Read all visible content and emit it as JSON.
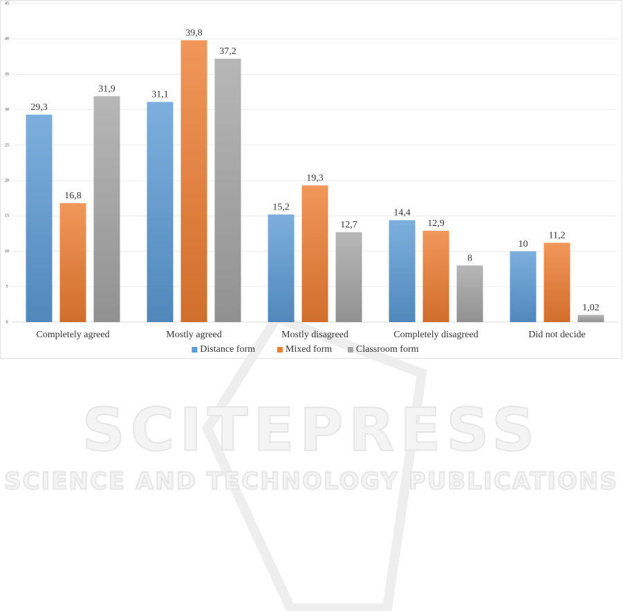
{
  "chart_data": {
    "type": "bar",
    "categories": [
      "Completely agreed",
      "Mostly agreed",
      "Mostly disagreed",
      "Completely disagreed",
      "Did not decide"
    ],
    "series": [
      {
        "name": "Distance form",
        "color": "#5b9bd5",
        "values": [
          29.3,
          31.1,
          15.2,
          14.4,
          10
        ],
        "value_labels": [
          "29,3",
          "31,1",
          "15,2",
          "14,4",
          "10"
        ]
      },
      {
        "name": "Mixed form",
        "color": "#ed7d31",
        "values": [
          16.8,
          39.8,
          19.3,
          12.9,
          11.2
        ],
        "value_labels": [
          "16,8",
          "39,8",
          "19,3",
          "12,9",
          "11,2"
        ]
      },
      {
        "name": "Classroom form",
        "color": "#a5a5a5",
        "values": [
          31.9,
          37.2,
          12.7,
          8,
          1.02
        ],
        "value_labels": [
          "31,9",
          "37,2",
          "12,7",
          "8",
          "1,02"
        ]
      }
    ],
    "ylim": [
      0,
      45
    ],
    "yticks": [
      0,
      5,
      10,
      15,
      20,
      25,
      30,
      35,
      40,
      45
    ],
    "grid": true,
    "legend": "bottom"
  },
  "watermark": {
    "title": "SCITEPRESS",
    "subtitle": "SCIENCE AND TECHNOLOGY PUBLICATIONS"
  }
}
